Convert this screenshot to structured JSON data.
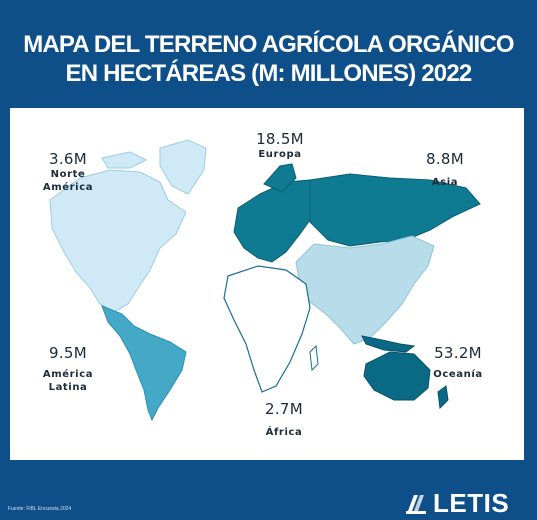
{
  "title": {
    "line1": "MAPA DEL TERRENO AGRÍCOLA ORGÁNICO",
    "line2": "EN HECTÁREAS (M: MILLONES) 2022"
  },
  "colors": {
    "background": "#0e4f8a",
    "north_america": "#cfe9f6",
    "latin_america": "#44a9c6",
    "europe": "#0e7b93",
    "asia": "#b9dcea",
    "africa": "#ffffff",
    "oceania": "#0a6a86",
    "land_outline": "#1a6f92"
  },
  "regions": {
    "north_america": {
      "value": "3.6M",
      "name": "Norte\nAmérica"
    },
    "europe": {
      "value": "18.5M",
      "name": "Europa"
    },
    "asia": {
      "value": "8.8M",
      "name": "Asia"
    },
    "latin_america": {
      "value": "9.5M",
      "name": "América\nLatina"
    },
    "oceania": {
      "value": "53.2M",
      "name": "Oceanía"
    },
    "africa": {
      "value": "2.7M",
      "name": "África"
    }
  },
  "source": "Fuente: FiBL Encuesta 2024",
  "logo": {
    "text": "LETIS",
    "icon": "letis-logo-icon"
  }
}
